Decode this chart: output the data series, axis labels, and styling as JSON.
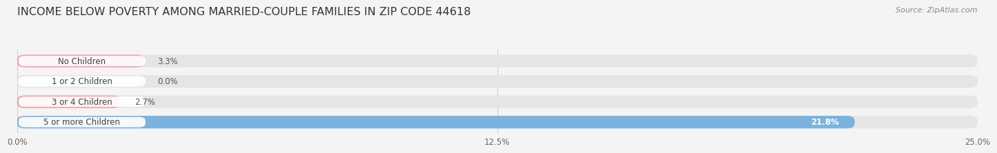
{
  "title": "INCOME BELOW POVERTY AMONG MARRIED-COUPLE FAMILIES IN ZIP CODE 44618",
  "source": "Source: ZipAtlas.com",
  "categories": [
    "No Children",
    "1 or 2 Children",
    "3 or 4 Children",
    "5 or more Children"
  ],
  "values": [
    3.3,
    0.0,
    2.7,
    21.8
  ],
  "bar_colors": [
    "#f4a0b5",
    "#f5c897",
    "#f4a0a0",
    "#7ab3e0"
  ],
  "track_color": "#e5e5e5",
  "background_color": "#f4f4f4",
  "xlim": [
    0,
    25.0
  ],
  "xticks": [
    0.0,
    12.5,
    25.0
  ],
  "xticklabels": [
    "0.0%",
    "12.5%",
    "25.0%"
  ],
  "value_labels": [
    "3.3%",
    "0.0%",
    "2.7%",
    "21.8%"
  ],
  "title_fontsize": 11.5,
  "bar_height": 0.62,
  "figsize": [
    14.06,
    2.33
  ]
}
